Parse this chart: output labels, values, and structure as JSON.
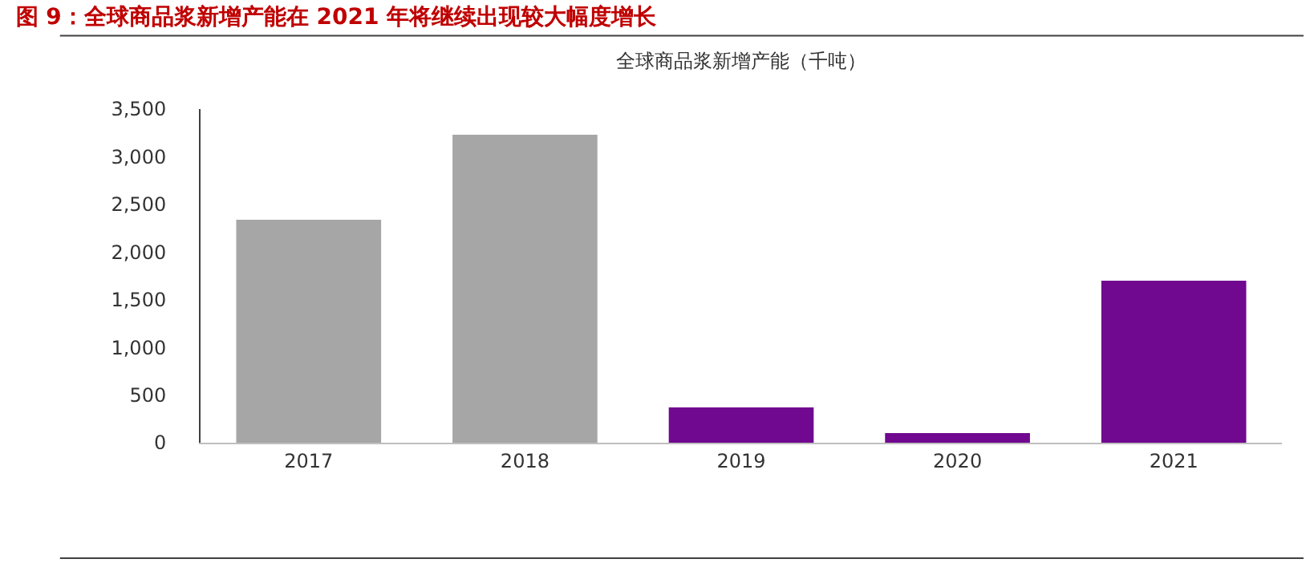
{
  "chart_data": {
    "type": "bar",
    "title": "图 9：全球商品浆新增产能在 2021 年将继续出现较大幅度增长",
    "subtitle": "全球商品浆新增产能（千吨）",
    "categories": [
      "2017",
      "2018",
      "2019",
      "2020",
      "2021"
    ],
    "values": [
      2340,
      3230,
      370,
      100,
      1700
    ],
    "colors": [
      "#a6a6a6",
      "#a6a6a6",
      "#700890",
      "#700890",
      "#700890"
    ],
    "ylim": [
      0,
      3500
    ],
    "yticks": [
      {
        "value": 0,
        "label": "0"
      },
      {
        "value": 500,
        "label": "500"
      },
      {
        "value": 1000,
        "label": "1,000"
      },
      {
        "value": 1500,
        "label": "1,500"
      },
      {
        "value": 2000,
        "label": "2,000"
      },
      {
        "value": 2500,
        "label": "2,500"
      },
      {
        "value": 3000,
        "label": "3,000"
      },
      {
        "value": 3500,
        "label": "3,500"
      }
    ]
  }
}
